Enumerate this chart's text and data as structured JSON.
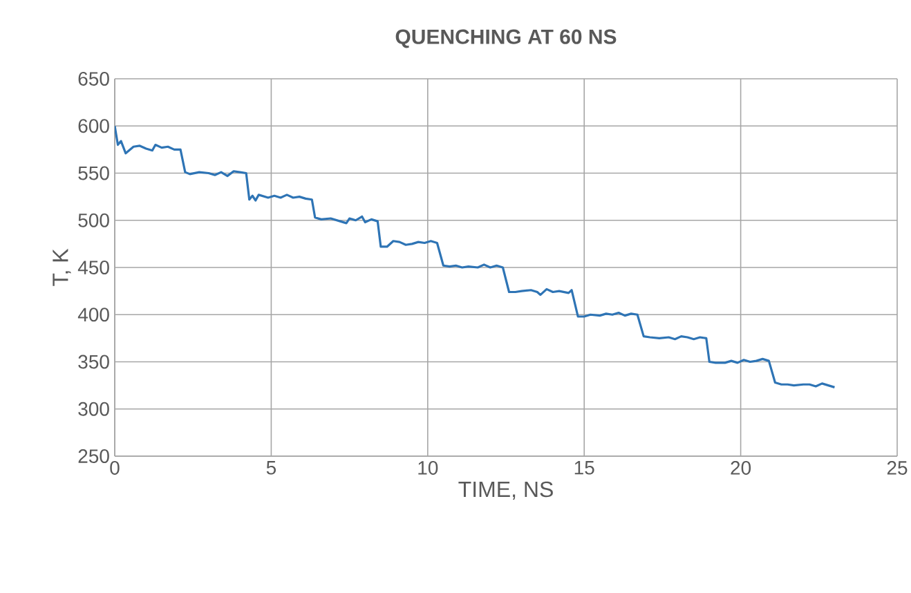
{
  "chart_data": {
    "type": "line",
    "title": "QUENCHING AT 60 NS",
    "xlabel": "TIME, NS",
    "ylabel": "T, K",
    "xlim": [
      0,
      25
    ],
    "xticks": [
      0,
      5,
      10,
      15,
      20,
      25
    ],
    "ylim": [
      250,
      650
    ],
    "yticks": [
      250,
      300,
      350,
      400,
      450,
      500,
      550,
      600,
      650
    ],
    "grid": true,
    "series": [
      {
        "color": "#2e74b5",
        "x": [
          0,
          0.1,
          0.2,
          0.35,
          0.6,
          0.8,
          1.0,
          1.2,
          1.3,
          1.5,
          1.7,
          1.9,
          2.1,
          2.25,
          2.4,
          2.7,
          3.0,
          3.2,
          3.4,
          3.6,
          3.8,
          4.0,
          4.2,
          4.3,
          4.4,
          4.5,
          4.6,
          4.9,
          5.1,
          5.3,
          5.5,
          5.7,
          5.9,
          6.1,
          6.3,
          6.4,
          6.6,
          6.9,
          7.2,
          7.4,
          7.5,
          7.7,
          7.9,
          8.0,
          8.2,
          8.4,
          8.5,
          8.7,
          8.9,
          9.1,
          9.3,
          9.5,
          9.7,
          9.9,
          10.1,
          10.3,
          10.5,
          10.7,
          10.9,
          11.1,
          11.3,
          11.6,
          11.8,
          12.0,
          12.2,
          12.4,
          12.6,
          12.8,
          13.0,
          13.3,
          13.5,
          13.6,
          13.8,
          14.0,
          14.2,
          14.5,
          14.6,
          14.8,
          15.0,
          15.2,
          15.5,
          15.7,
          15.9,
          16.1,
          16.3,
          16.5,
          16.7,
          16.9,
          17.1,
          17.4,
          17.7,
          17.9,
          18.1,
          18.3,
          18.5,
          18.7,
          18.9,
          19.0,
          19.2,
          19.5,
          19.7,
          19.9,
          20.1,
          20.3,
          20.5,
          20.7,
          20.9,
          21.1,
          21.3,
          21.5,
          21.7,
          22.0,
          22.2,
          22.4,
          22.6,
          22.8,
          23.0
        ],
        "values": [
          600,
          580,
          584,
          571,
          578,
          579,
          576,
          574,
          580,
          577,
          578,
          575,
          575,
          551,
          549,
          551,
          550,
          548,
          551,
          547,
          552,
          551,
          550,
          522,
          526,
          521,
          527,
          524,
          526,
          524,
          527,
          524,
          525,
          523,
          522,
          503,
          501,
          502,
          499,
          497,
          502,
          500,
          504,
          498,
          501,
          499,
          472,
          472,
          478,
          477,
          474,
          475,
          477,
          476,
          478,
          476,
          452,
          451,
          452,
          450,
          451,
          450,
          453,
          450,
          452,
          450,
          424,
          424,
          425,
          426,
          424,
          421,
          427,
          424,
          425,
          423,
          426,
          398,
          398,
          400,
          399,
          401,
          400,
          402,
          399,
          401,
          400,
          377,
          376,
          375,
          376,
          374,
          377,
          376,
          374,
          376,
          375,
          350,
          349,
          349,
          351,
          349,
          352,
          350,
          351,
          353,
          351,
          328,
          326,
          326,
          325,
          326,
          326,
          324,
          327,
          325,
          323
        ]
      }
    ]
  }
}
